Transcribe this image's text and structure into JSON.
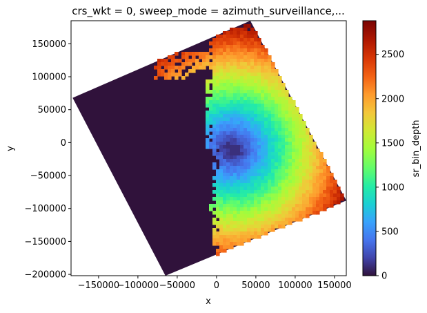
{
  "chart_data": {
    "type": "heatmap",
    "title": "crs_wkt = 0, sweep_mode = azimuth_surveillance,...",
    "xlabel": "x",
    "ylabel": "y",
    "xlim": [
      -185000,
      165000
    ],
    "ylim": [
      -202000,
      185000
    ],
    "x_ticks": [
      -150000,
      -100000,
      -50000,
      0,
      50000,
      100000,
      150000
    ],
    "x_tick_labels": [
      "−150000",
      "−100000",
      "−50000",
      "0",
      "50000",
      "100000",
      "150000"
    ],
    "y_ticks": [
      -200000,
      -150000,
      -100000,
      -50000,
      0,
      50000,
      100000,
      150000
    ],
    "y_tick_labels": [
      "−200000",
      "−150000",
      "−100000",
      "−50000",
      "0",
      "50000",
      "100000",
      "150000"
    ],
    "colorbar": {
      "label": "sr_bin_depth",
      "range": [
        0,
        2880
      ],
      "ticks": [
        0,
        500,
        1000,
        1500,
        2000,
        2500
      ],
      "tick_labels": [
        "0",
        "500",
        "1000",
        "1500",
        "2000",
        "2500"
      ],
      "colormap": "turbo"
    },
    "footprint_polygon": [
      [
        -183000,
        68000
      ],
      [
        43000,
        185000
      ],
      [
        165000,
        -88000
      ],
      [
        -65000,
        -202000
      ]
    ],
    "radar_center": [
      20000,
      -10000
    ],
    "echo_region": {
      "value_min": 0,
      "value_max": 2880,
      "background_value": 0
    }
  }
}
